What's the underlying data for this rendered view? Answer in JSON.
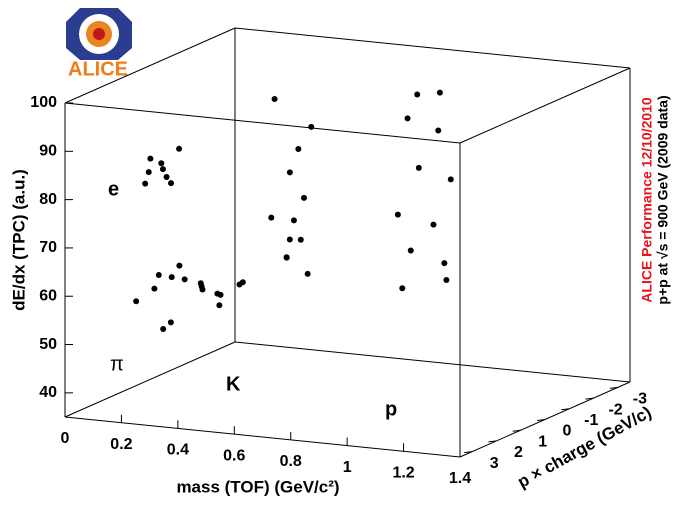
{
  "logo": {
    "text": "ALICE"
  },
  "chart_data": {
    "type": "scatter3d",
    "x_label": "mass (TOF) (GeV/c²)",
    "y_label": "dE/dx (TPC) (a.u.)",
    "z_label": "p × charge (GeV/c)",
    "annotations": [
      "ALICE Performance 12/10/2010",
      "p+p at √s = 900 GeV (2009 data)"
    ],
    "annotation_colors": [
      "#e8141c",
      "#000000"
    ],
    "xlim": [
      0,
      1.4
    ],
    "xticks": [
      0,
      0.2,
      0.4,
      0.6,
      0.8,
      1,
      1.2,
      1.4
    ],
    "ylim": [
      35,
      100
    ],
    "yticks": [
      40,
      50,
      60,
      70,
      80,
      90,
      100
    ],
    "zlim": [
      3.5,
      -3.5
    ],
    "zticks": [
      3,
      2,
      1,
      0,
      -1,
      -2,
      -3
    ],
    "series": [
      {
        "name": "e",
        "color": "#000000",
        "x": [
          0.02,
          0.04,
          0.0,
          0.06,
          0.03,
          0.05,
          0.01,
          0.04
        ],
        "y": [
          78,
          80,
          76,
          82,
          79,
          77,
          81,
          75
        ],
        "z": [
          -0.3,
          0,
          0.2,
          -0.5,
          0.4,
          -0.1,
          0.1,
          -0.4
        ]
      },
      {
        "name": "π",
        "color": "#000000",
        "x": [
          0.1,
          0.14,
          0.18,
          0.12,
          0.16,
          0.2,
          0.08,
          0.14,
          0.22,
          0.1,
          0.17,
          0.13,
          0.25,
          0.3,
          0.05,
          0.15
        ],
        "y": [
          52,
          54,
          56,
          58,
          50,
          53,
          55,
          57,
          51,
          59,
          52,
          60,
          54,
          56,
          55,
          49
        ],
        "z": [
          -1,
          -0.5,
          0,
          0.5,
          1,
          -1.5,
          1.5,
          0.2,
          -0.3,
          0.8,
          -0.8,
          0.3,
          0,
          -0.2,
          0.4,
          1.2
        ]
      },
      {
        "name": "K",
        "color": "#000000",
        "x": [
          0.45,
          0.5,
          0.48,
          0.52,
          0.47,
          0.5,
          0.55,
          0.42,
          0.49,
          0.51,
          0.46,
          0.53
        ],
        "y": [
          62,
          66,
          70,
          75,
          80,
          85,
          90,
          95,
          58,
          64,
          72,
          68
        ],
        "z": [
          -0.4,
          -0.4,
          -0.35,
          -0.3,
          -0.3,
          -0.3,
          -0.25,
          -0.25,
          -0.8,
          0.3,
          0.35,
          0.4
        ]
      },
      {
        "name": "p",
        "color": "#000000",
        "x": [
          0.92,
          0.95,
          0.9,
          0.97,
          0.93,
          0.96,
          0.94,
          0.91,
          0.98,
          0.94,
          0.95,
          0.93
        ],
        "y": [
          60,
          68,
          75,
          85,
          95,
          100,
          62,
          70,
          80,
          90,
          98,
          58
        ],
        "z": [
          0.3,
          0.3,
          0.25,
          0.2,
          0.2,
          0.15,
          -1.2,
          -1.1,
          -1,
          -0.95,
          -0.9,
          -1.4
        ]
      }
    ]
  }
}
